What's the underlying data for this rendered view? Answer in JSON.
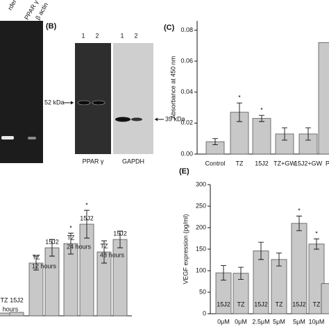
{
  "panel_a": {
    "lane_labels": [
      "rder",
      "PPAR γ",
      "β actin"
    ]
  },
  "panel_b": {
    "label": "(B)",
    "lanes_left": [
      "1",
      "2"
    ],
    "lanes_right": [
      "1",
      "2"
    ],
    "marker_left": "52 kDa",
    "marker_right": "39 kDa",
    "blot_left": "PPAR γ",
    "blot_right": "GAPDH"
  },
  "chart_data": [
    {
      "type": "bar",
      "panel_label": "(C)",
      "y_label": "Absorbance at 450 nm",
      "categories": [
        "Control",
        "TZ",
        "15J2",
        "TZ+GW",
        "15J2+GW",
        "P"
      ],
      "values": [
        0.008,
        0.027,
        0.023,
        0.013,
        0.013,
        0.072
      ],
      "errors": [
        0.002,
        0.006,
        0.002,
        0.004,
        0.004,
        null
      ],
      "significant": [
        false,
        true,
        true,
        false,
        false,
        false
      ],
      "significance_mark": "*",
      "color": "#c8c8c8",
      "ylim": [
        0,
        0.086
      ],
      "yticks": [
        {
          "value": 0,
          "label": "0.00"
        },
        {
          "value": 0.02,
          "label": "0.02"
        },
        {
          "value": 0.04,
          "label": "0.04"
        },
        {
          "value": 0.06,
          "label": "0.06"
        },
        {
          "value": 0.08,
          "label": "0.08"
        }
      ]
    },
    {
      "type": "bar",
      "categories": [
        "TZ",
        "15J2",
        "TZ",
        "15J2",
        "TZ",
        "15J2",
        "TZ",
        "15J2"
      ],
      "groups": [
        "hours",
        "12 hours",
        "24 hours",
        "48 hours"
      ],
      "values": [
        4,
        5,
        76,
        98,
        104,
        132,
        92,
        110
      ],
      "errors": [
        null,
        null,
        10,
        12,
        15,
        20,
        16,
        12
      ],
      "significant": [
        false,
        false,
        false,
        false,
        true,
        true,
        false,
        false
      ],
      "significance_mark": "*",
      "color": "#c8c8c8",
      "ylim": [
        0,
        160
      ]
    },
    {
      "type": "bar",
      "panel_label": "(E)",
      "y_label": "VEGF expression (pg/ml)",
      "categories": [
        "0μM",
        "0μM",
        "2.5μM",
        "5μM",
        "5μM",
        "10μM",
        null
      ],
      "inner_labels": [
        "15J2",
        "TZ",
        "15J2",
        "TZ",
        "15J2",
        "TZ",
        null
      ],
      "values": [
        95,
        94,
        146,
        126,
        210,
        162,
        70
      ],
      "errors": [
        17,
        14,
        20,
        15,
        17,
        12,
        null
      ],
      "significant": [
        false,
        false,
        false,
        false,
        true,
        true,
        false
      ],
      "significance_mark": "*",
      "color": "#c8c8c8",
      "ylim": [
        0,
        300
      ],
      "yticks": [
        0,
        50,
        100,
        150,
        200,
        250,
        300
      ]
    }
  ]
}
